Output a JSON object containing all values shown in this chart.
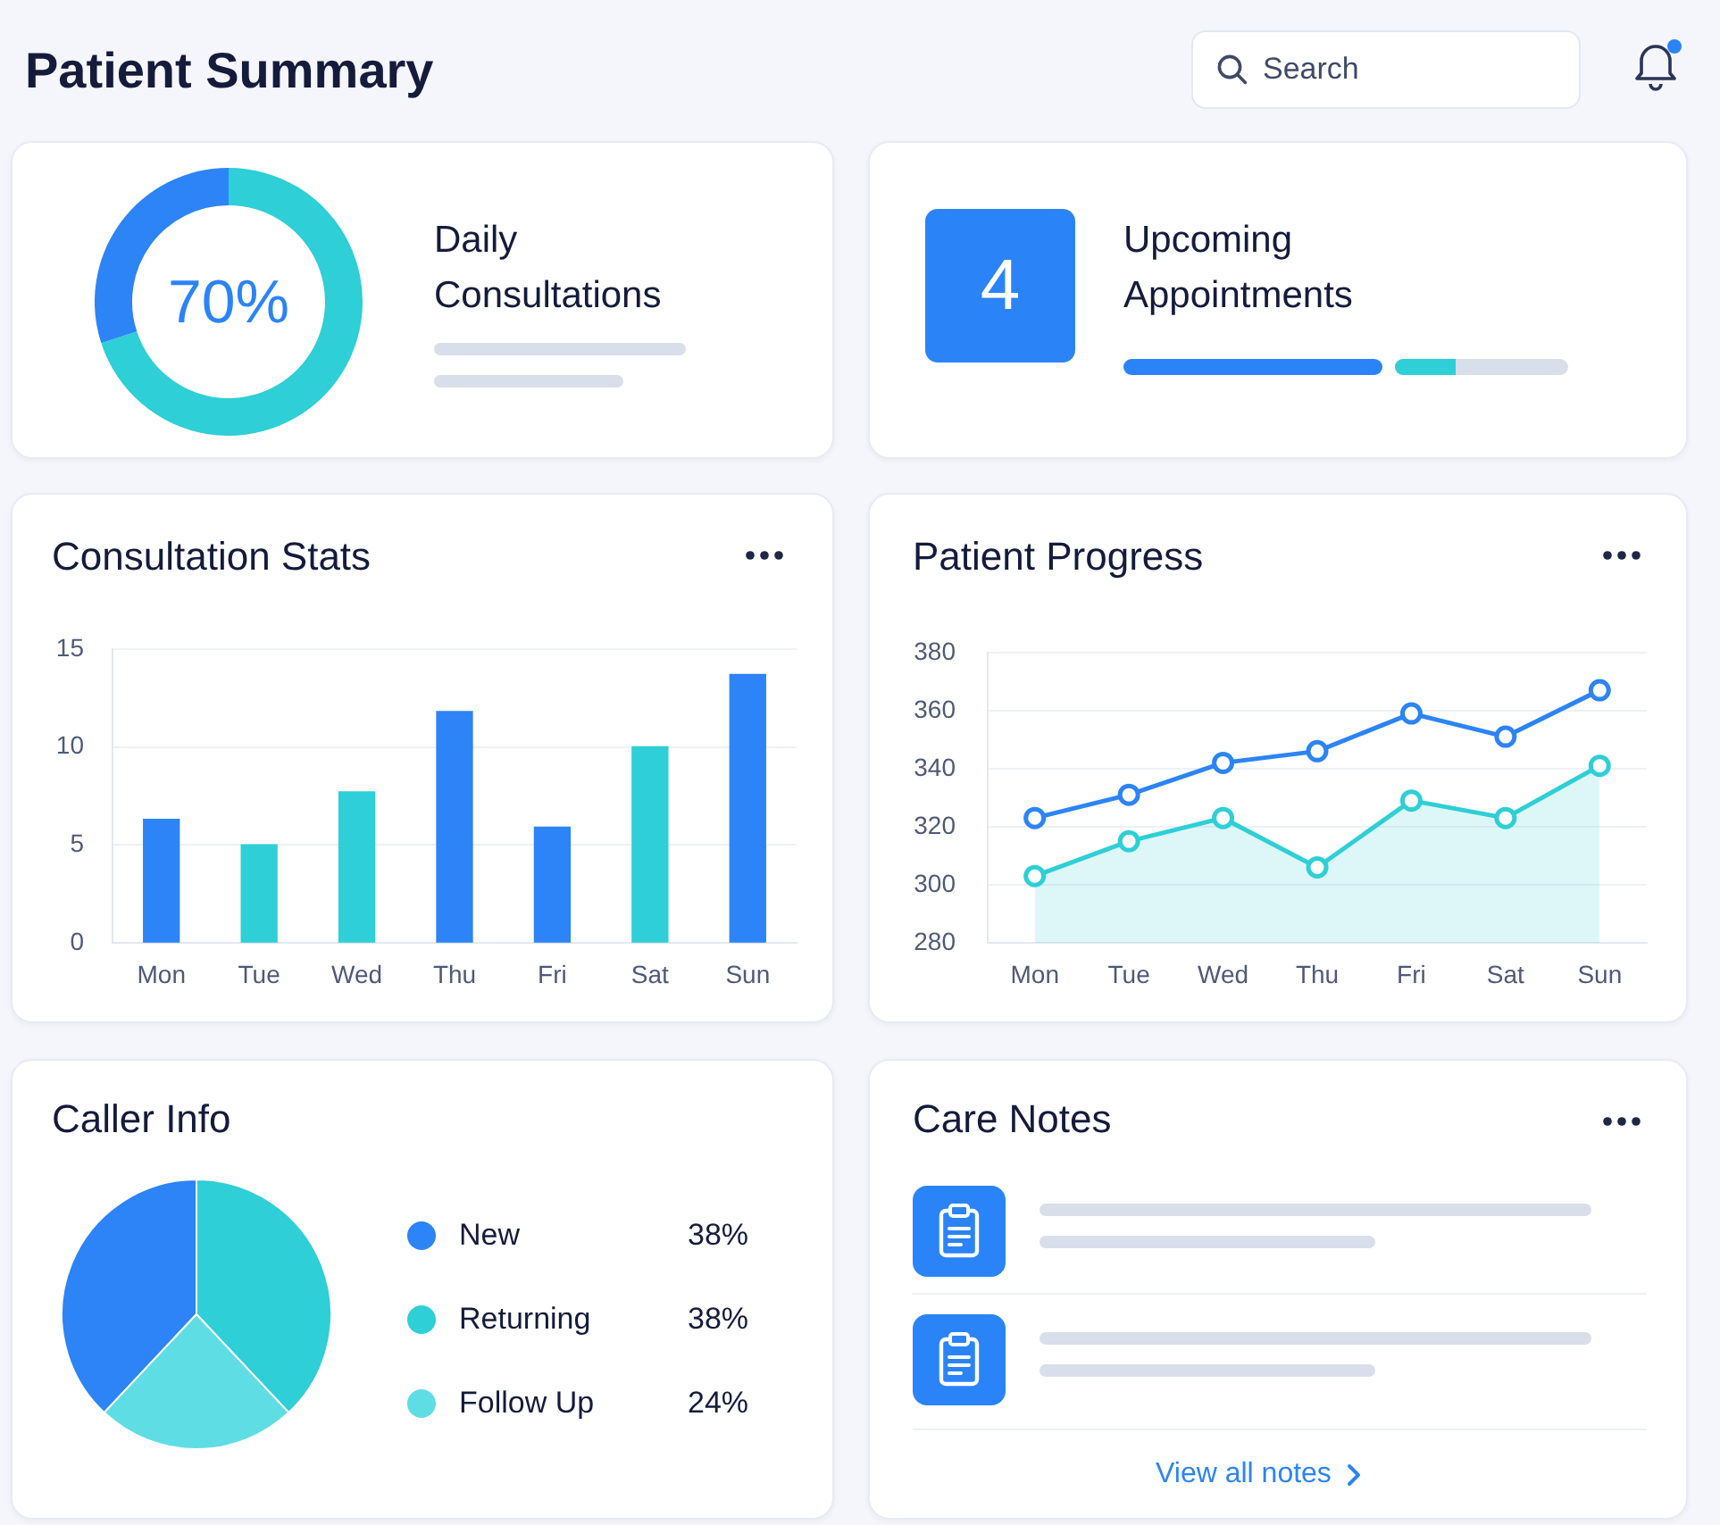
{
  "chart_data": [
    {
      "type": "other",
      "title": "Patient Summary",
      "annotations": [
        "Search"
      ]
    },
    {
      "type": "donut",
      "title": "Daily Consultations",
      "categories": [
        null,
        null
      ],
      "values": [
        70,
        30
      ],
      "colors": [
        "#2ecfd6",
        "#2c84f6"
      ],
      "value_labels": [
        "70%",
        null
      ]
    },
    {
      "type": "other",
      "title": "Upcoming Appointments",
      "annotations": [
        "4"
      ]
    },
    {
      "type": "bar",
      "title": "Consultation Stats",
      "categories": [
        "Mon",
        "Tue",
        "Wed",
        "Thu",
        "Fri",
        "Sat",
        "Sun"
      ],
      "values": [
        6.3,
        5,
        7.7,
        11.8,
        5.9,
        10,
        13.7
      ],
      "colors": [
        "#2c84f6",
        "#2ecfd6",
        "#2ecfd6",
        "#2c84f6",
        "#2c84f6",
        "#2ecfd6",
        "#2c84f6"
      ],
      "ylim": [
        0,
        15
      ],
      "yticks": [
        0,
        5,
        10,
        15
      ],
      "grid": "y"
    },
    {
      "type": "line",
      "title": "Patient Progress",
      "categories": [
        "Mon",
        "Tue",
        "Wed",
        "Thu",
        "Fri",
        "Sat",
        "Sun"
      ],
      "series": [
        {
          "type": "line",
          "color": "#2c84f6",
          "values": [
            323,
            331,
            342,
            346,
            359,
            351,
            367
          ]
        },
        {
          "type": "area",
          "color": "#2ecfd6",
          "values": [
            303,
            315,
            323,
            306,
            329,
            323,
            341
          ]
        }
      ],
      "ylim": [
        280,
        380
      ],
      "yticks": [
        280,
        300,
        320,
        340,
        360,
        380
      ],
      "grid": "y",
      "marker": "circle"
    },
    {
      "type": "pie",
      "title": "Caller Info",
      "categories": [
        "New",
        "Returning",
        "Follow Up"
      ],
      "values": [
        38,
        38,
        24
      ],
      "colors": [
        "#2c84f6",
        "#2ecfd6",
        "#5fdde4"
      ],
      "value_labels": [
        "38%",
        "38%",
        "24%"
      ],
      "legend": "right"
    },
    {
      "type": "other",
      "title": "Care Notes",
      "annotations": [
        "View all notes"
      ]
    }
  ]
}
